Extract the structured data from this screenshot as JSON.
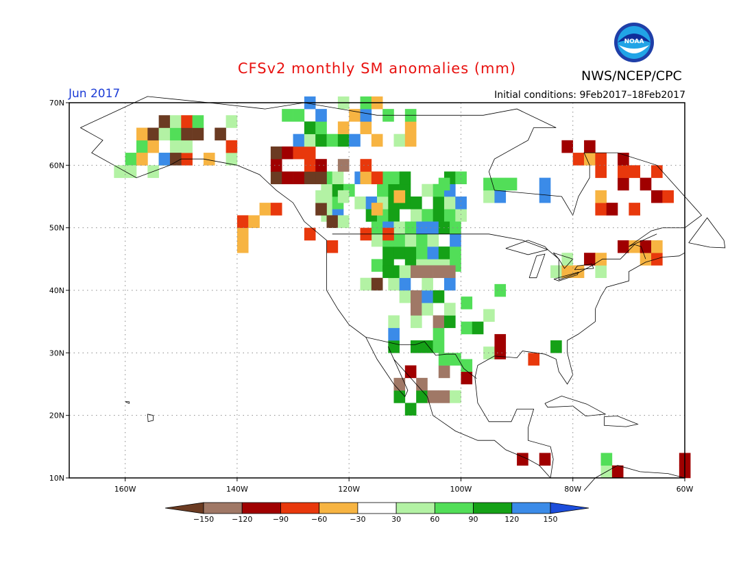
{
  "title": "CFSv2 monthly SM anomalies (mm)",
  "agency": "NWS/NCEP/CPC",
  "logo_text": "NOAA",
  "period": "Jun 2017",
  "initial_conditions": "Initial conditions: 9Feb2017–18Feb2017",
  "map": {
    "lon_range": [
      -170,
      -60
    ],
    "lat_range": [
      10,
      70
    ],
    "lat_ticks": [
      {
        "value": 70,
        "label": "70N"
      },
      {
        "value": 60,
        "label": "60N"
      },
      {
        "value": 50,
        "label": "50N"
      },
      {
        "value": 40,
        "label": "40N"
      },
      {
        "value": 30,
        "label": "30N"
      },
      {
        "value": 20,
        "label": "20N"
      },
      {
        "value": 10,
        "label": "10N"
      }
    ],
    "lon_ticks": [
      {
        "value": -160,
        "label": "160W"
      },
      {
        "value": -140,
        "label": "140W"
      },
      {
        "value": -120,
        "label": "120W"
      },
      {
        "value": -100,
        "label": "100W"
      },
      {
        "value": -80,
        "label": "80W"
      },
      {
        "value": -60,
        "label": "60W"
      }
    ],
    "grid": "dotted"
  },
  "colorbar": {
    "colors": [
      "#6b3b22",
      "#a07866",
      "#a00000",
      "#e8380c",
      "#f7b442",
      "#ffffff",
      "#b3f2a4",
      "#52de58",
      "#15a117",
      "#3b8be8",
      "#1c4ddb"
    ],
    "labels": [
      "−150",
      "−120",
      "−90",
      "−60",
      "−30",
      "30",
      "60",
      "90",
      "120",
      "150"
    ]
  },
  "colors": {
    "title": "#e8110f",
    "period": "#1b3bd6",
    "land_line": "#000000",
    "grid": "#888888"
  }
}
